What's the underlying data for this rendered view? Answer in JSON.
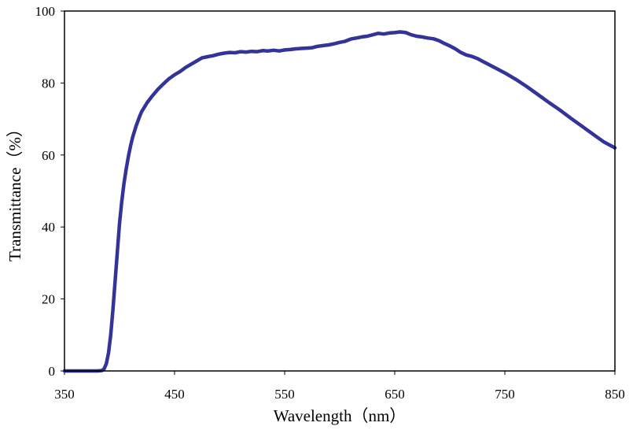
{
  "chart_data": {
    "type": "line",
    "title": "",
    "xlabel": "Wavelength（nm）",
    "ylabel": "Transmittance（%）",
    "xlim": [
      350,
      850
    ],
    "ylim": [
      0,
      100
    ],
    "x_ticks": [
      350,
      450,
      550,
      650,
      750,
      850
    ],
    "x_tick_labels": [
      "350",
      "450",
      "550",
      "650",
      "750",
      "850"
    ],
    "y_ticks": [
      0,
      20,
      40,
      60,
      80,
      100
    ],
    "y_tick_labels": [
      "0",
      "20",
      "40",
      "60",
      "80",
      "100"
    ],
    "grid": false,
    "legend": "none",
    "line_color": "#333399",
    "series": [
      {
        "x": [
          350,
          360,
          370,
          380,
          384,
          386,
          388,
          390,
          392,
          394,
          396,
          398,
          400,
          402,
          404,
          406,
          408,
          410,
          412,
          415,
          418,
          420,
          425,
          430,
          435,
          440,
          445,
          450,
          455,
          460,
          465,
          470,
          475,
          480,
          485,
          490,
          495,
          500,
          505,
          510,
          515,
          520,
          525,
          530,
          535,
          540,
          545,
          550,
          555,
          560,
          565,
          570,
          575,
          580,
          585,
          590,
          595,
          600,
          605,
          610,
          615,
          620,
          625,
          630,
          635,
          640,
          645,
          650,
          655,
          660,
          665,
          670,
          675,
          680,
          685,
          690,
          695,
          700,
          705,
          710,
          715,
          720,
          725,
          730,
          740,
          750,
          760,
          770,
          780,
          790,
          800,
          810,
          820,
          830,
          840,
          850
        ],
        "y": [
          0,
          0,
          0,
          0,
          0.1,
          0.6,
          2,
          5,
          10,
          17,
          25,
          33,
          41,
          47,
          52,
          56,
          59.5,
          62.5,
          65,
          68,
          70.5,
          72,
          74.5,
          76.5,
          78.3,
          79.8,
          81.2,
          82.3,
          83.2,
          84.3,
          85.2,
          86.1,
          87,
          87.3,
          87.6,
          88,
          88.3,
          88.5,
          88.4,
          88.7,
          88.6,
          88.8,
          88.7,
          89,
          88.9,
          89.1,
          88.9,
          89.2,
          89.3,
          89.5,
          89.6,
          89.7,
          89.8,
          90.2,
          90.4,
          90.6,
          90.9,
          91.3,
          91.6,
          92.2,
          92.5,
          92.8,
          93,
          93.4,
          93.8,
          93.6,
          93.9,
          94,
          94.2,
          94,
          93.4,
          93,
          92.8,
          92.5,
          92.3,
          91.8,
          91,
          90.3,
          89.5,
          88.5,
          87.8,
          87.4,
          86.8,
          86,
          84.4,
          82.8,
          81,
          79,
          76.8,
          74.6,
          72.5,
          70.2,
          68,
          65.8,
          63.6,
          62
        ]
      }
    ]
  }
}
